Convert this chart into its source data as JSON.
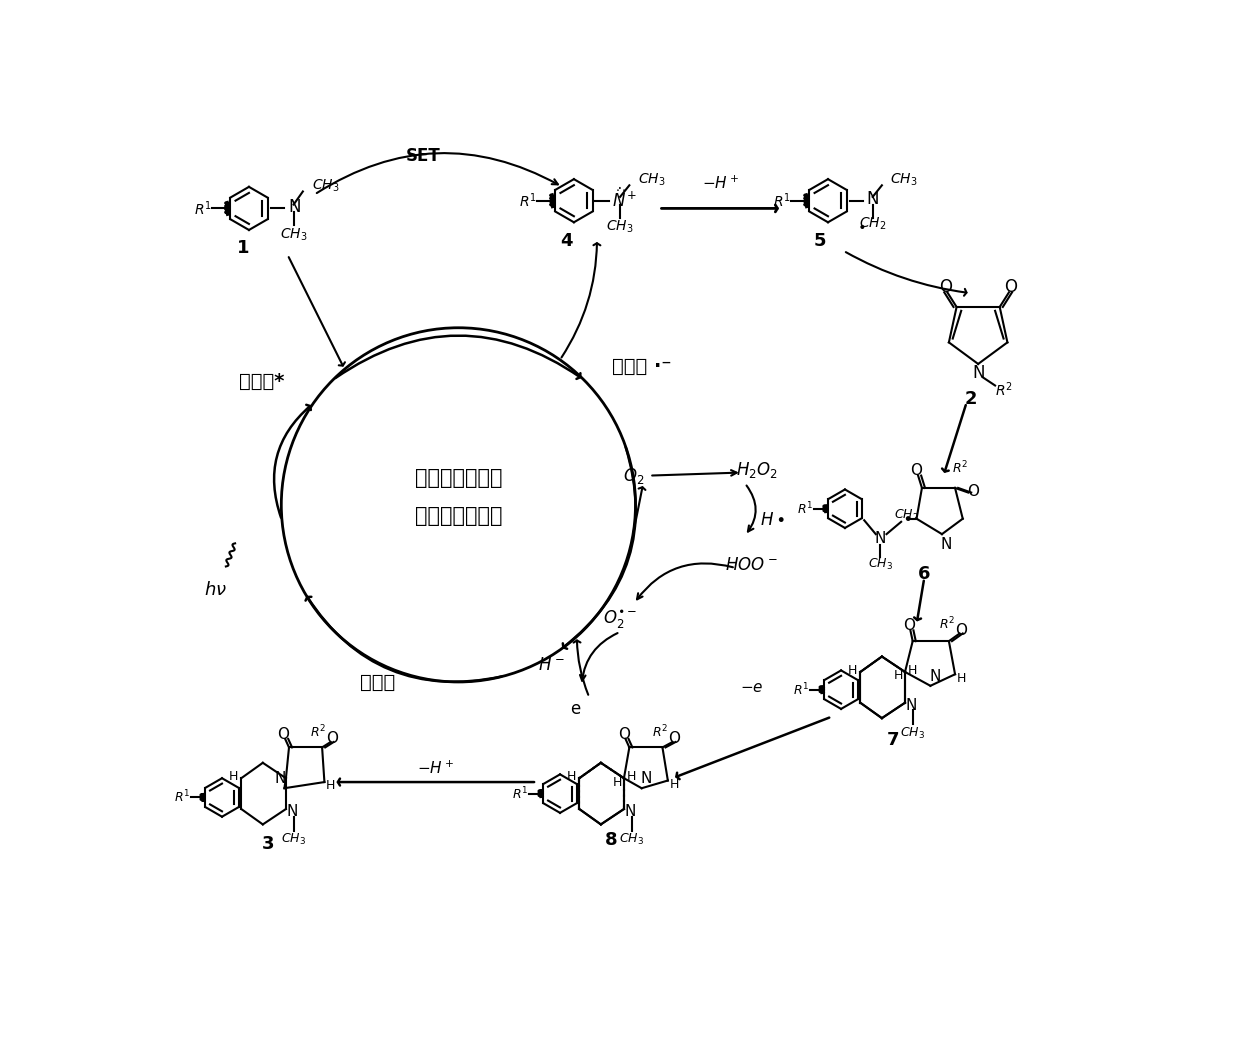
{
  "background": "#ffffff",
  "fig_width": 12.4,
  "fig_height": 10.63,
  "dpi": 100,
  "chinese_labels": {
    "chlorophyll_star": "叶绳素*",
    "chlorophyll_radical": "叶绳素 ·⁻",
    "chlorophyll": "叶绳素",
    "center_text_line1": "叶绳素作为光敏",
    "center_text_line2": "剂的光如化循环"
  }
}
